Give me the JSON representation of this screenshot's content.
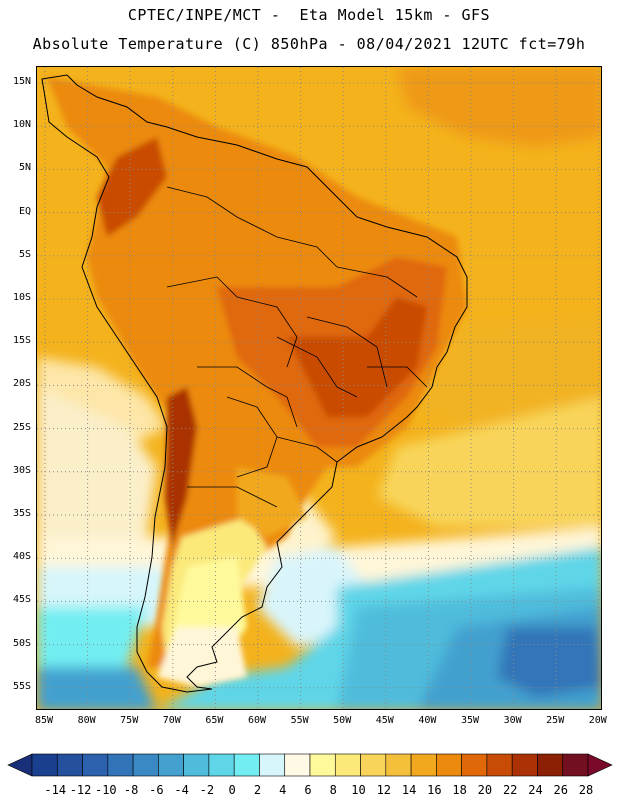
{
  "header": {
    "title_line1": "CPTEC/INPE/MCT -  Eta Model 15km - GFS",
    "title_line2": "Absolute Temperature (C) 850hPa - 08/04/2021 12UTC fct=79h"
  },
  "map": {
    "lat_labels": [
      "15N",
      "10N",
      "5N",
      "EQ",
      "5S",
      "10S",
      "15S",
      "20S",
      "25S",
      "30S",
      "35S",
      "40S",
      "45S",
      "50S",
      "55S"
    ],
    "lon_labels": [
      "85W",
      "80W",
      "75W",
      "70W",
      "65W",
      "60W",
      "55W",
      "50W",
      "45W",
      "40W",
      "35W",
      "30W",
      "25W",
      "20W"
    ],
    "grid": "dotted"
  },
  "colorbar": {
    "labels": [
      "-14",
      "-12",
      "-10",
      "-8",
      "-6",
      "-4",
      "-2",
      "0",
      "2",
      "4",
      "6",
      "8",
      "10",
      "12",
      "14",
      "16",
      "18",
      "20",
      "22",
      "24",
      "26",
      "28"
    ],
    "colors": [
      "#1a3f8f",
      "#24509e",
      "#2c62ad",
      "#3174b8",
      "#3a88c4",
      "#43a0cf",
      "#4fbcdc",
      "#5fd6e8",
      "#72eef2",
      "#d6f6fb",
      "#fff9e6",
      "#fefa9c",
      "#fbe97a",
      "#f8d55a",
      "#f4c03c",
      "#f2a81e",
      "#ec8a0e",
      "#e06808",
      "#c94c06",
      "#aa3206",
      "#8c2004",
      "#720f20"
    ],
    "under_color": "#1a2f7a",
    "over_color": "#7a0a2a"
  }
}
